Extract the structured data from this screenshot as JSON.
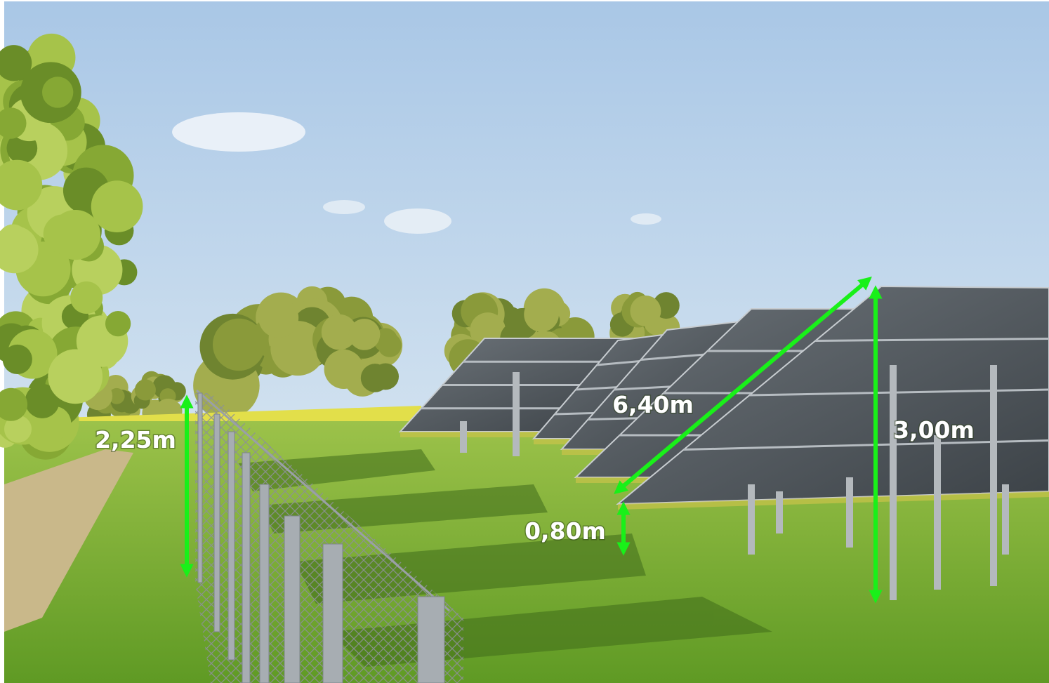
{
  "annotations": [
    {
      "label": "2,25m"
    },
    {
      "label": "6,40m"
    },
    {
      "label": "3,00m"
    },
    {
      "label": "0,80m"
    }
  ]
}
